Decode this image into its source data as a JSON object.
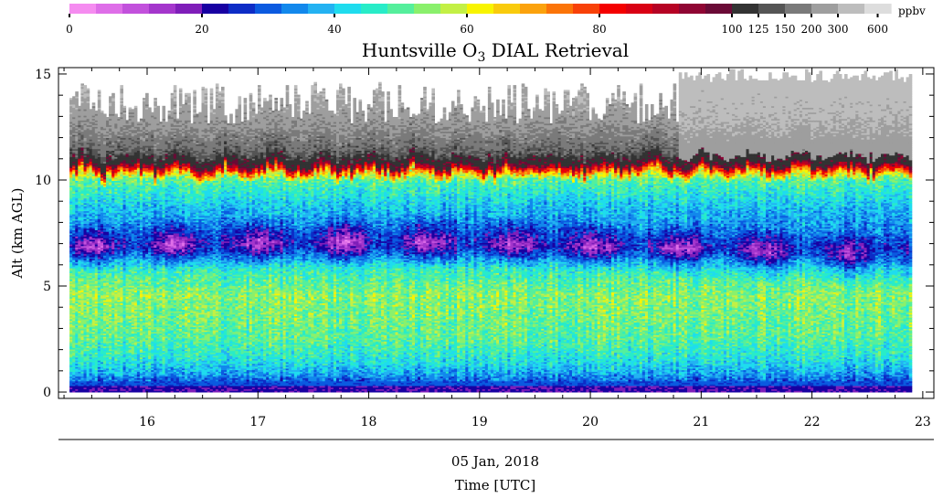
{
  "chart_data": {
    "type": "heatmap",
    "title": "Huntsville O",
    "title_subscript": "3",
    "title_suffix": " DIAL Retrieval",
    "ylabel": "Alt (km AGL)",
    "date_label": "05 Jan, 2018",
    "xlabel": "Time [UTC]",
    "xlim": [
      15.2,
      23.1
    ],
    "ylim": [
      -0.3,
      15.3
    ],
    "data_x_range": [
      15.3,
      22.9
    ],
    "x_ticks": [
      16,
      17,
      18,
      19,
      20,
      21,
      22,
      23
    ],
    "y_ticks": [
      0,
      5,
      10,
      15
    ],
    "colorbar": {
      "unit": "ppbv",
      "labels": [
        "0",
        "20",
        "40",
        "60",
        "80",
        "100",
        "125",
        "150",
        "200",
        "300",
        "600"
      ],
      "colors": [
        "#f58cf0",
        "#de6ee8",
        "#c251dc",
        "#a436cc",
        "#7f1eb9",
        "#1800a2",
        "#0d2cc6",
        "#0b5ae0",
        "#1288ec",
        "#23b2f2",
        "#1fdcee",
        "#28ecc8",
        "#55ef9c",
        "#8af06c",
        "#c3f045",
        "#f8f400",
        "#f9cb0c",
        "#fba20d",
        "#fb7408",
        "#f84108",
        "#f40000",
        "#d90014",
        "#b60224",
        "#8f0533",
        "#6a0a36",
        "#333333",
        "#555555",
        "#7a7a7a",
        "#9e9e9e",
        "#bdbdbd",
        "#dddddd"
      ]
    },
    "profile_model": {
      "description_levels_ppbv": [
        {
          "alt": 0.0,
          "ppbv": 21
        },
        {
          "alt": 0.3,
          "ppbv": 27
        },
        {
          "alt": 0.8,
          "ppbv": 36
        },
        {
          "alt": 1.5,
          "ppbv": 44
        },
        {
          "alt": 2.5,
          "ppbv": 50
        },
        {
          "alt": 4.5,
          "ppbv": 54
        },
        {
          "alt": 5.8,
          "ppbv": 46
        },
        {
          "alt": 6.8,
          "ppbv": 31
        },
        {
          "alt": 8.5,
          "ppbv": 38
        },
        {
          "alt": 10.0,
          "ppbv": 50
        },
        {
          "alt": 10.7,
          "ppbv": 70
        },
        {
          "alt": 11.1,
          "ppbv": 110
        },
        {
          "alt": 12.0,
          "ppbv": 175
        },
        {
          "alt": 14.5,
          "ppbv": 300
        }
      ]
    }
  }
}
